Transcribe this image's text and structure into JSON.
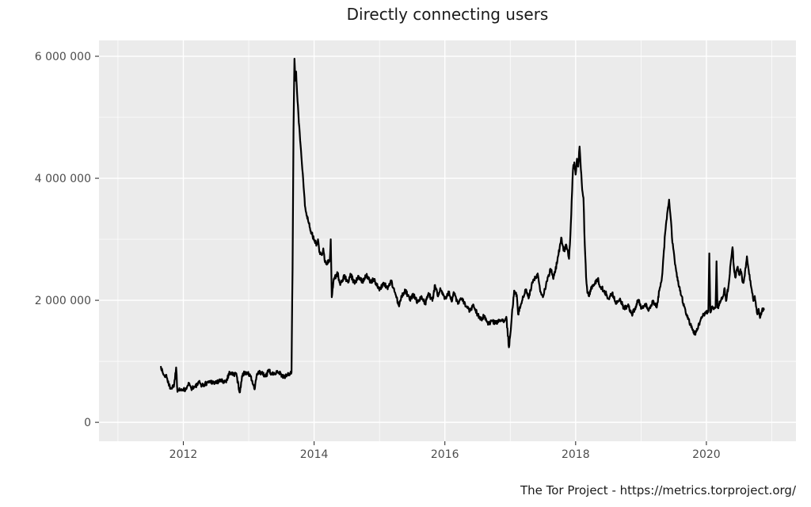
{
  "title": "Directly connecting users",
  "footer": "The Tor Project - https://metrics.torproject.org/",
  "chart_data": {
    "type": "line",
    "title": "Directly connecting users",
    "xlabel": "",
    "ylabel": "",
    "value_unit": "millions_of_users",
    "grid": true,
    "legend": false,
    "panel_background": "#ebebeb",
    "gridline_color": "#ffffff",
    "tick_mark_color": "#333333",
    "tick_label_color": "#4d4d4d",
    "line_color": "#000000",
    "noise_amplitude": 0.038,
    "x_axis": {
      "range": [
        2010.71,
        2021.37
      ],
      "ticks": [
        {
          "value": 2012,
          "label": "2012"
        },
        {
          "value": 2014,
          "label": "2014"
        },
        {
          "value": 2016,
          "label": "2016"
        },
        {
          "value": 2018,
          "label": "2018"
        },
        {
          "value": 2020,
          "label": "2020"
        }
      ],
      "minor_ticks": [
        2011,
        2013,
        2015,
        2017,
        2019,
        2021
      ]
    },
    "y_axis": {
      "range": [
        -0.31,
        6.26
      ],
      "ticks": [
        {
          "value": 0,
          "label": "0"
        },
        {
          "value": 2,
          "label": "2 000 000"
        },
        {
          "value": 4,
          "label": "4 000 000"
        },
        {
          "value": 6,
          "label": "6 000 000"
        }
      ],
      "minor_ticks": [
        1,
        3,
        5
      ]
    },
    "series": [
      {
        "name": "directly-connecting-users",
        "color": "#000000",
        "points": [
          [
            2011.657,
            0.91
          ],
          [
            2011.69,
            0.8
          ],
          [
            2011.72,
            0.74
          ],
          [
            2011.74,
            0.78
          ],
          [
            2011.78,
            0.6
          ],
          [
            2011.82,
            0.56
          ],
          [
            2011.86,
            0.62
          ],
          [
            2011.89,
            0.9
          ],
          [
            2011.91,
            0.5
          ],
          [
            2011.94,
            0.56
          ],
          [
            2012.0,
            0.52
          ],
          [
            2012.04,
            0.56
          ],
          [
            2012.08,
            0.65
          ],
          [
            2012.12,
            0.56
          ],
          [
            2012.18,
            0.58
          ],
          [
            2012.24,
            0.65
          ],
          [
            2012.3,
            0.6
          ],
          [
            2012.36,
            0.65
          ],
          [
            2012.42,
            0.67
          ],
          [
            2012.48,
            0.65
          ],
          [
            2012.57,
            0.68
          ],
          [
            2012.65,
            0.67
          ],
          [
            2012.71,
            0.82
          ],
          [
            2012.77,
            0.78
          ],
          [
            2012.81,
            0.8
          ],
          [
            2012.86,
            0.49
          ],
          [
            2012.91,
            0.8
          ],
          [
            2012.97,
            0.82
          ],
          [
            2013.03,
            0.75
          ],
          [
            2013.09,
            0.54
          ],
          [
            2013.13,
            0.8
          ],
          [
            2013.19,
            0.82
          ],
          [
            2013.25,
            0.75
          ],
          [
            2013.31,
            0.84
          ],
          [
            2013.37,
            0.78
          ],
          [
            2013.43,
            0.84
          ],
          [
            2013.49,
            0.8
          ],
          [
            2013.53,
            0.73
          ],
          [
            2013.59,
            0.78
          ],
          [
            2013.63,
            0.8
          ],
          [
            2013.655,
            0.82
          ],
          [
            2013.67,
            2.5
          ],
          [
            2013.685,
            4.8
          ],
          [
            2013.7,
            5.96
          ],
          [
            2013.715,
            5.6
          ],
          [
            2013.725,
            5.75
          ],
          [
            2013.74,
            5.4
          ],
          [
            2013.76,
            5.05
          ],
          [
            2013.78,
            4.75
          ],
          [
            2013.8,
            4.45
          ],
          [
            2013.82,
            4.15
          ],
          [
            2013.84,
            3.85
          ],
          [
            2013.86,
            3.55
          ],
          [
            2013.875,
            3.45
          ],
          [
            2013.89,
            3.39
          ],
          [
            2013.92,
            3.26
          ],
          [
            2013.96,
            3.11
          ],
          [
            2014.0,
            2.98
          ],
          [
            2014.04,
            2.92
          ],
          [
            2014.06,
            3.0
          ],
          [
            2014.08,
            2.79
          ],
          [
            2014.12,
            2.74
          ],
          [
            2014.14,
            2.85
          ],
          [
            2014.16,
            2.66
          ],
          [
            2014.2,
            2.61
          ],
          [
            2014.24,
            2.65
          ],
          [
            2014.255,
            3.0
          ],
          [
            2014.27,
            2.05
          ],
          [
            2014.3,
            2.35
          ],
          [
            2014.36,
            2.44
          ],
          [
            2014.4,
            2.25
          ],
          [
            2014.46,
            2.4
          ],
          [
            2014.52,
            2.29
          ],
          [
            2014.56,
            2.42
          ],
          [
            2014.62,
            2.27
          ],
          [
            2014.68,
            2.4
          ],
          [
            2014.74,
            2.31
          ],
          [
            2014.8,
            2.42
          ],
          [
            2014.86,
            2.29
          ],
          [
            2014.92,
            2.35
          ],
          [
            2014.96,
            2.25
          ],
          [
            2015.0,
            2.16
          ],
          [
            2015.06,
            2.29
          ],
          [
            2015.12,
            2.2
          ],
          [
            2015.18,
            2.31
          ],
          [
            2015.24,
            2.12
          ],
          [
            2015.3,
            1.9
          ],
          [
            2015.34,
            2.07
          ],
          [
            2015.4,
            2.16
          ],
          [
            2015.46,
            2.01
          ],
          [
            2015.52,
            2.09
          ],
          [
            2015.58,
            1.97
          ],
          [
            2015.64,
            2.07
          ],
          [
            2015.7,
            1.94
          ],
          [
            2015.75,
            2.12
          ],
          [
            2015.81,
            1.99
          ],
          [
            2015.85,
            2.25
          ],
          [
            2015.89,
            2.07
          ],
          [
            2015.93,
            2.2
          ],
          [
            2016.0,
            2.03
          ],
          [
            2016.06,
            2.14
          ],
          [
            2016.1,
            1.99
          ],
          [
            2016.14,
            2.12
          ],
          [
            2016.2,
            1.94
          ],
          [
            2016.26,
            2.03
          ],
          [
            2016.32,
            1.9
          ],
          [
            2016.38,
            1.84
          ],
          [
            2016.44,
            1.92
          ],
          [
            2016.5,
            1.77
          ],
          [
            2016.56,
            1.68
          ],
          [
            2016.6,
            1.75
          ],
          [
            2016.66,
            1.6
          ],
          [
            2016.72,
            1.66
          ],
          [
            2016.78,
            1.62
          ],
          [
            2016.84,
            1.68
          ],
          [
            2016.9,
            1.64
          ],
          [
            2016.94,
            1.73
          ],
          [
            2016.98,
            1.23
          ],
          [
            2017.02,
            1.68
          ],
          [
            2017.06,
            2.16
          ],
          [
            2017.1,
            2.09
          ],
          [
            2017.12,
            1.77
          ],
          [
            2017.18,
            1.99
          ],
          [
            2017.24,
            2.18
          ],
          [
            2017.28,
            2.03
          ],
          [
            2017.34,
            2.29
          ],
          [
            2017.42,
            2.44
          ],
          [
            2017.46,
            2.14
          ],
          [
            2017.5,
            2.05
          ],
          [
            2017.56,
            2.31
          ],
          [
            2017.62,
            2.51
          ],
          [
            2017.66,
            2.35
          ],
          [
            2017.72,
            2.64
          ],
          [
            2017.78,
            3.03
          ],
          [
            2017.82,
            2.81
          ],
          [
            2017.86,
            2.9
          ],
          [
            2017.9,
            2.68
          ],
          [
            2017.92,
            3.07
          ],
          [
            2017.94,
            3.63
          ],
          [
            2017.96,
            4.15
          ],
          [
            2017.98,
            4.26
          ],
          [
            2018.0,
            4.06
          ],
          [
            2018.02,
            4.32
          ],
          [
            2018.04,
            4.19
          ],
          [
            2018.06,
            4.52
          ],
          [
            2018.08,
            4.15
          ],
          [
            2018.1,
            3.81
          ],
          [
            2018.12,
            3.68
          ],
          [
            2018.14,
            2.9
          ],
          [
            2018.16,
            2.38
          ],
          [
            2018.18,
            2.12
          ],
          [
            2018.2,
            2.07
          ],
          [
            2018.26,
            2.25
          ],
          [
            2018.34,
            2.35
          ],
          [
            2018.38,
            2.22
          ],
          [
            2018.44,
            2.16
          ],
          [
            2018.5,
            2.03
          ],
          [
            2018.56,
            2.12
          ],
          [
            2018.62,
            1.94
          ],
          [
            2018.68,
            2.03
          ],
          [
            2018.74,
            1.86
          ],
          [
            2018.8,
            1.92
          ],
          [
            2018.86,
            1.77
          ],
          [
            2018.92,
            1.9
          ],
          [
            2018.96,
            2.01
          ],
          [
            2019.0,
            1.86
          ],
          [
            2019.06,
            1.94
          ],
          [
            2019.12,
            1.84
          ],
          [
            2019.18,
            1.99
          ],
          [
            2019.24,
            1.88
          ],
          [
            2019.28,
            2.16
          ],
          [
            2019.32,
            2.38
          ],
          [
            2019.35,
            2.81
          ],
          [
            2019.37,
            3.11
          ],
          [
            2019.4,
            3.42
          ],
          [
            2019.43,
            3.65
          ],
          [
            2019.46,
            3.29
          ],
          [
            2019.48,
            2.94
          ],
          [
            2019.5,
            2.81
          ],
          [
            2019.52,
            2.59
          ],
          [
            2019.55,
            2.38
          ],
          [
            2019.58,
            2.22
          ],
          [
            2019.62,
            2.07
          ],
          [
            2019.66,
            1.9
          ],
          [
            2019.7,
            1.77
          ],
          [
            2019.74,
            1.64
          ],
          [
            2019.78,
            1.55
          ],
          [
            2019.82,
            1.45
          ],
          [
            2019.86,
            1.51
          ],
          [
            2019.9,
            1.64
          ],
          [
            2019.94,
            1.73
          ],
          [
            2020.0,
            1.81
          ],
          [
            2020.03,
            1.83
          ],
          [
            2020.045,
            2.77
          ],
          [
            2020.06,
            1.8
          ],
          [
            2020.08,
            1.86
          ],
          [
            2020.14,
            1.88
          ],
          [
            2020.155,
            2.64
          ],
          [
            2020.17,
            1.88
          ],
          [
            2020.22,
            1.99
          ],
          [
            2020.26,
            2.07
          ],
          [
            2020.28,
            2.2
          ],
          [
            2020.3,
            1.99
          ],
          [
            2020.34,
            2.25
          ],
          [
            2020.37,
            2.59
          ],
          [
            2020.4,
            2.87
          ],
          [
            2020.42,
            2.55
          ],
          [
            2020.44,
            2.38
          ],
          [
            2020.48,
            2.55
          ],
          [
            2020.5,
            2.42
          ],
          [
            2020.52,
            2.51
          ],
          [
            2020.56,
            2.29
          ],
          [
            2020.58,
            2.38
          ],
          [
            2020.62,
            2.72
          ],
          [
            2020.64,
            2.55
          ],
          [
            2020.66,
            2.42
          ],
          [
            2020.68,
            2.25
          ],
          [
            2020.7,
            2.12
          ],
          [
            2020.72,
            1.99
          ],
          [
            2020.74,
            2.07
          ],
          [
            2020.76,
            1.9
          ],
          [
            2020.78,
            1.77
          ],
          [
            2020.8,
            1.86
          ],
          [
            2020.82,
            1.71
          ],
          [
            2020.85,
            1.83
          ],
          [
            2020.88,
            1.85
          ]
        ]
      }
    ]
  }
}
